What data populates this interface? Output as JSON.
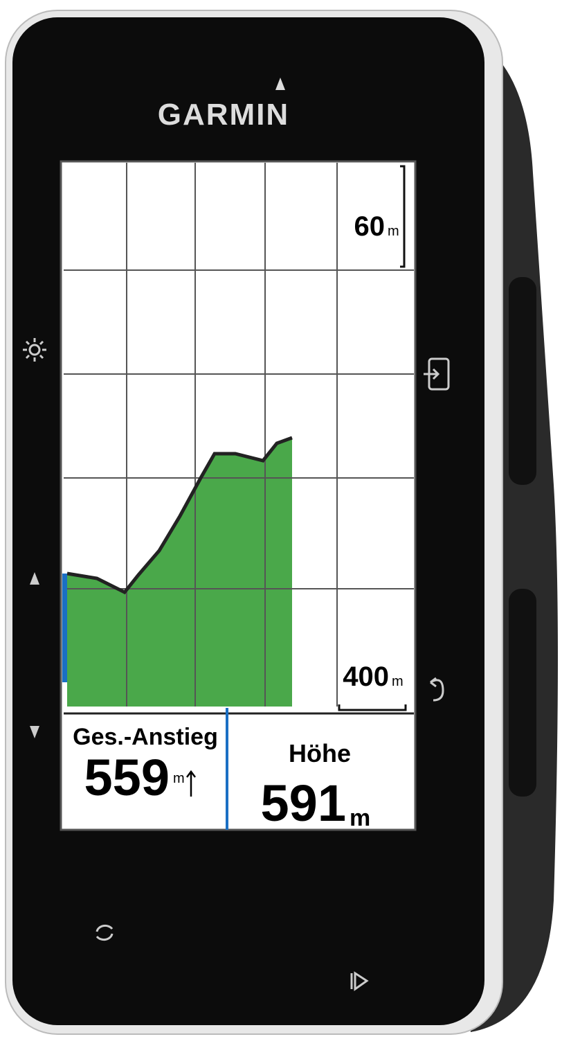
{
  "brand": "GARMIN",
  "screen": {
    "scale": {
      "vertical": {
        "value": "60",
        "unit": "m"
      },
      "horizontal": {
        "value": "400",
        "unit": "m"
      }
    },
    "fields": [
      {
        "label": "Ges.-Anstieg",
        "value": "559",
        "unit": "m"
      },
      {
        "label": "Höhe",
        "value": "591",
        "unit": "m"
      }
    ]
  }
}
